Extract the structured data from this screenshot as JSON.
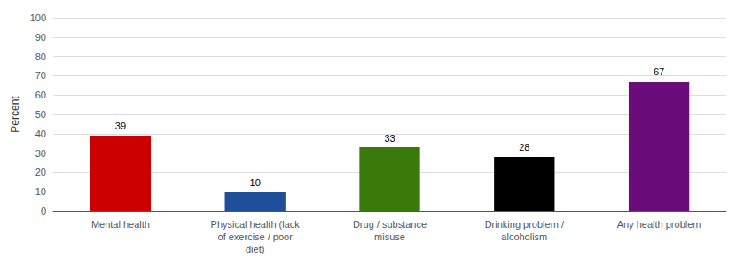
{
  "chart_data": {
    "type": "bar",
    "categories": [
      "Mental health",
      "Physical health (lack\nof exercise / poor\ndiet)",
      "Drug / substance\nmisuse",
      "Drinking problem /\nalcoholism",
      "Any health problem"
    ],
    "values": [
      39,
      10,
      33,
      28,
      67
    ],
    "colors": [
      "#cc0000",
      "#1f4e9a",
      "#3a7a0a",
      "#000000",
      "#6a0d7a"
    ],
    "ylabel": "Percent",
    "ylim": [
      0,
      100
    ],
    "yticks": [
      0,
      10,
      20,
      30,
      40,
      50,
      60,
      70,
      80,
      90,
      100
    ],
    "grid": true,
    "data_labels": true
  }
}
